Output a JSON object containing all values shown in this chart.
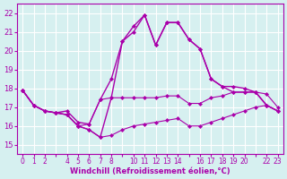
{
  "xlabel": "Windchill (Refroidissement éolien,°C)",
  "background_color": "#d6f0f0",
  "grid_color": "#ffffff",
  "line_color": "#aa00aa",
  "xtick_positions": [
    0,
    1,
    2,
    4,
    5,
    6,
    7,
    8,
    10,
    11,
    12,
    13,
    14,
    16,
    17,
    18,
    19,
    20,
    22,
    23
  ],
  "xtick_labels": [
    "0",
    "1",
    "2",
    "4",
    "5",
    "6",
    "7",
    "8",
    "10",
    "11",
    "12",
    "13",
    "14",
    "16",
    "17",
    "18",
    "19",
    "20",
    "22",
    "23"
  ],
  "ylim": [
    14.5,
    22.5
  ],
  "yticks": [
    15,
    16,
    17,
    18,
    19,
    20,
    21,
    22
  ],
  "xlim": [
    -0.5,
    23.5
  ],
  "series": [
    [
      17.9,
      17.1,
      16.8,
      16.7,
      16.6,
      16.0,
      15.8,
      15.4,
      15.5,
      15.8,
      16.0,
      16.1,
      16.2,
      16.3,
      16.4,
      16.0,
      16.0,
      16.2,
      16.4,
      16.6,
      16.8,
      17.0,
      17.1,
      16.8
    ],
    [
      17.9,
      17.1,
      16.8,
      16.7,
      16.6,
      16.0,
      16.1,
      17.4,
      17.5,
      17.5,
      17.5,
      17.5,
      17.5,
      17.6,
      17.6,
      17.2,
      17.2,
      17.5,
      17.6,
      17.8,
      17.8,
      17.8,
      17.7,
      17.0
    ],
    [
      17.9,
      17.1,
      16.8,
      16.7,
      16.6,
      16.0,
      15.8,
      15.4,
      17.5,
      20.5,
      21.3,
      21.9,
      20.3,
      21.5,
      21.5,
      20.6,
      20.1,
      18.5,
      18.1,
      18.1,
      18.0,
      17.8,
      17.1,
      16.8
    ],
    [
      17.9,
      17.1,
      16.8,
      16.7,
      16.8,
      16.2,
      16.1,
      17.4,
      18.5,
      20.5,
      21.0,
      21.9,
      20.3,
      21.5,
      21.5,
      20.6,
      20.1,
      18.5,
      18.1,
      17.8,
      17.8,
      17.8,
      17.1,
      16.8
    ]
  ],
  "series_linewidths": [
    0.8,
    0.8,
    1.0,
    1.0
  ],
  "marker": "D",
  "markersize": 2.0
}
